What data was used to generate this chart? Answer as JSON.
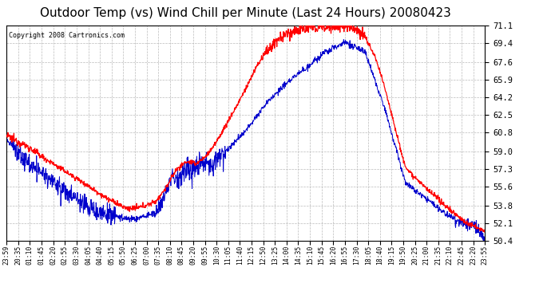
{
  "title": "Outdoor Temp (vs) Wind Chill per Minute (Last 24 Hours) 20080423",
  "copyright_text": "Copyright 2008 Cartronics.com",
  "yticks": [
    50.4,
    52.1,
    53.8,
    55.6,
    57.3,
    59.0,
    60.8,
    62.5,
    64.2,
    65.9,
    67.6,
    69.4,
    71.1
  ],
  "ymin": 50.4,
  "ymax": 71.1,
  "background_color": "#ffffff",
  "plot_bg_color": "#ffffff",
  "grid_color": "#bbbbbb",
  "red_color": "#ff0000",
  "blue_color": "#0000cc",
  "title_fontsize": 11,
  "xtick_labels": [
    "23:59",
    "20:35",
    "01:10",
    "01:45",
    "02:20",
    "02:55",
    "03:30",
    "04:05",
    "04:40",
    "05:15",
    "05:50",
    "06:25",
    "07:00",
    "07:35",
    "08:10",
    "08:45",
    "09:20",
    "09:55",
    "10:30",
    "11:05",
    "11:40",
    "12:15",
    "12:50",
    "13:25",
    "14:00",
    "14:35",
    "15:10",
    "15:45",
    "16:20",
    "16:55",
    "17:30",
    "18:05",
    "18:40",
    "19:15",
    "19:50",
    "20:25",
    "21:00",
    "21:35",
    "22:10",
    "22:45",
    "23:20",
    "23:55"
  ],
  "num_points": 1440,
  "red_key_t": [
    0,
    1,
    2,
    3,
    4,
    5,
    6,
    6.5,
    7,
    7.5,
    8,
    8.5,
    9,
    9.5,
    10,
    10.5,
    11,
    11.5,
    12,
    12.5,
    13,
    13.5,
    14,
    14.5,
    15,
    15.5,
    16,
    16.5,
    17,
    17.3,
    17.5,
    18,
    18.5,
    19,
    20,
    21,
    22,
    23,
    24
  ],
  "red_key_v": [
    60.5,
    59.5,
    58.2,
    57.0,
    55.8,
    54.5,
    53.5,
    53.5,
    53.8,
    54.2,
    55.5,
    57.2,
    58.0,
    57.8,
    58.5,
    59.8,
    61.5,
    63.2,
    65.0,
    67.0,
    68.5,
    69.5,
    70.2,
    70.6,
    70.8,
    70.9,
    71.0,
    71.0,
    71.0,
    71.1,
    70.8,
    70.0,
    68.0,
    65.0,
    57.5,
    55.5,
    53.8,
    52.2,
    51.3
  ],
  "blue_key_t": [
    0,
    0.3,
    1,
    2,
    3,
    4,
    4.5,
    5,
    5.5,
    6,
    6.5,
    7,
    7.5,
    8,
    8.3,
    8.6,
    9,
    9.3,
    9.6,
    10,
    10.3,
    10.6,
    11,
    12,
    13,
    14,
    15,
    16,
    17,
    18,
    19,
    20,
    21,
    22,
    22.5,
    23,
    23.5,
    24
  ],
  "blue_key_v": [
    60.2,
    59.5,
    58.0,
    56.5,
    55.0,
    53.8,
    53.2,
    53.0,
    52.8,
    52.5,
    52.5,
    52.8,
    53.0,
    55.0,
    56.8,
    56.0,
    57.5,
    57.0,
    57.8,
    58.2,
    57.5,
    58.5,
    59.0,
    61.0,
    63.5,
    65.5,
    67.0,
    68.5,
    69.5,
    68.5,
    63.0,
    56.0,
    54.5,
    53.0,
    52.5,
    52.0,
    51.8,
    50.5
  ]
}
